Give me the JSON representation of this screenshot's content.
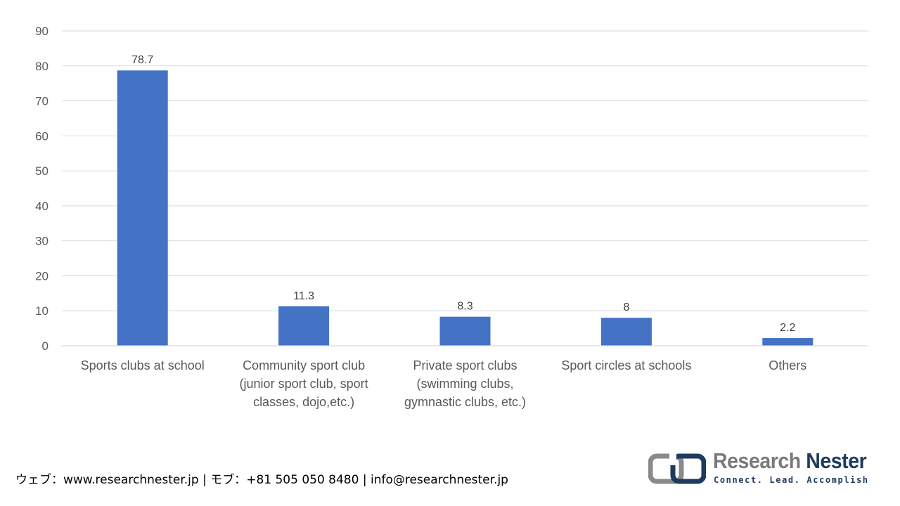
{
  "chart_data": {
    "type": "bar",
    "categories": [
      [
        "Sports clubs at school"
      ],
      [
        "Community sport club",
        "(junior sport club, sport",
        "classes, dojo,etc.)"
      ],
      [
        "Private sport clubs",
        "(swimming clubs,",
        "gymnastic clubs, etc.)"
      ],
      [
        "Sport circles at schools"
      ],
      [
        "Others"
      ]
    ],
    "values": [
      78.7,
      11.3,
      8.3,
      8,
      2.2
    ],
    "data_labels": [
      "78.7",
      "11.3",
      "8.3",
      "8",
      "2.2"
    ],
    "ylim": [
      0,
      90
    ],
    "yticks": [
      0,
      10,
      20,
      30,
      40,
      50,
      60,
      70,
      80,
      90
    ],
    "grid": true,
    "bar_color": "#4472C4",
    "grid_color": "#D9D9D9",
    "title": "",
    "xlabel": "",
    "ylabel": ""
  },
  "footer": {
    "contact": "ウェブ：www.researchnester.jp | モブ：+81 505 050 8480 | info@researchnester.jp"
  },
  "logo": {
    "name_part1": "Research",
    "name_part2": "Nester",
    "tagline": "Connect. Lead. Accomplish",
    "color_gray": "#7a7a7a",
    "color_navy": "#1f3a5f"
  }
}
